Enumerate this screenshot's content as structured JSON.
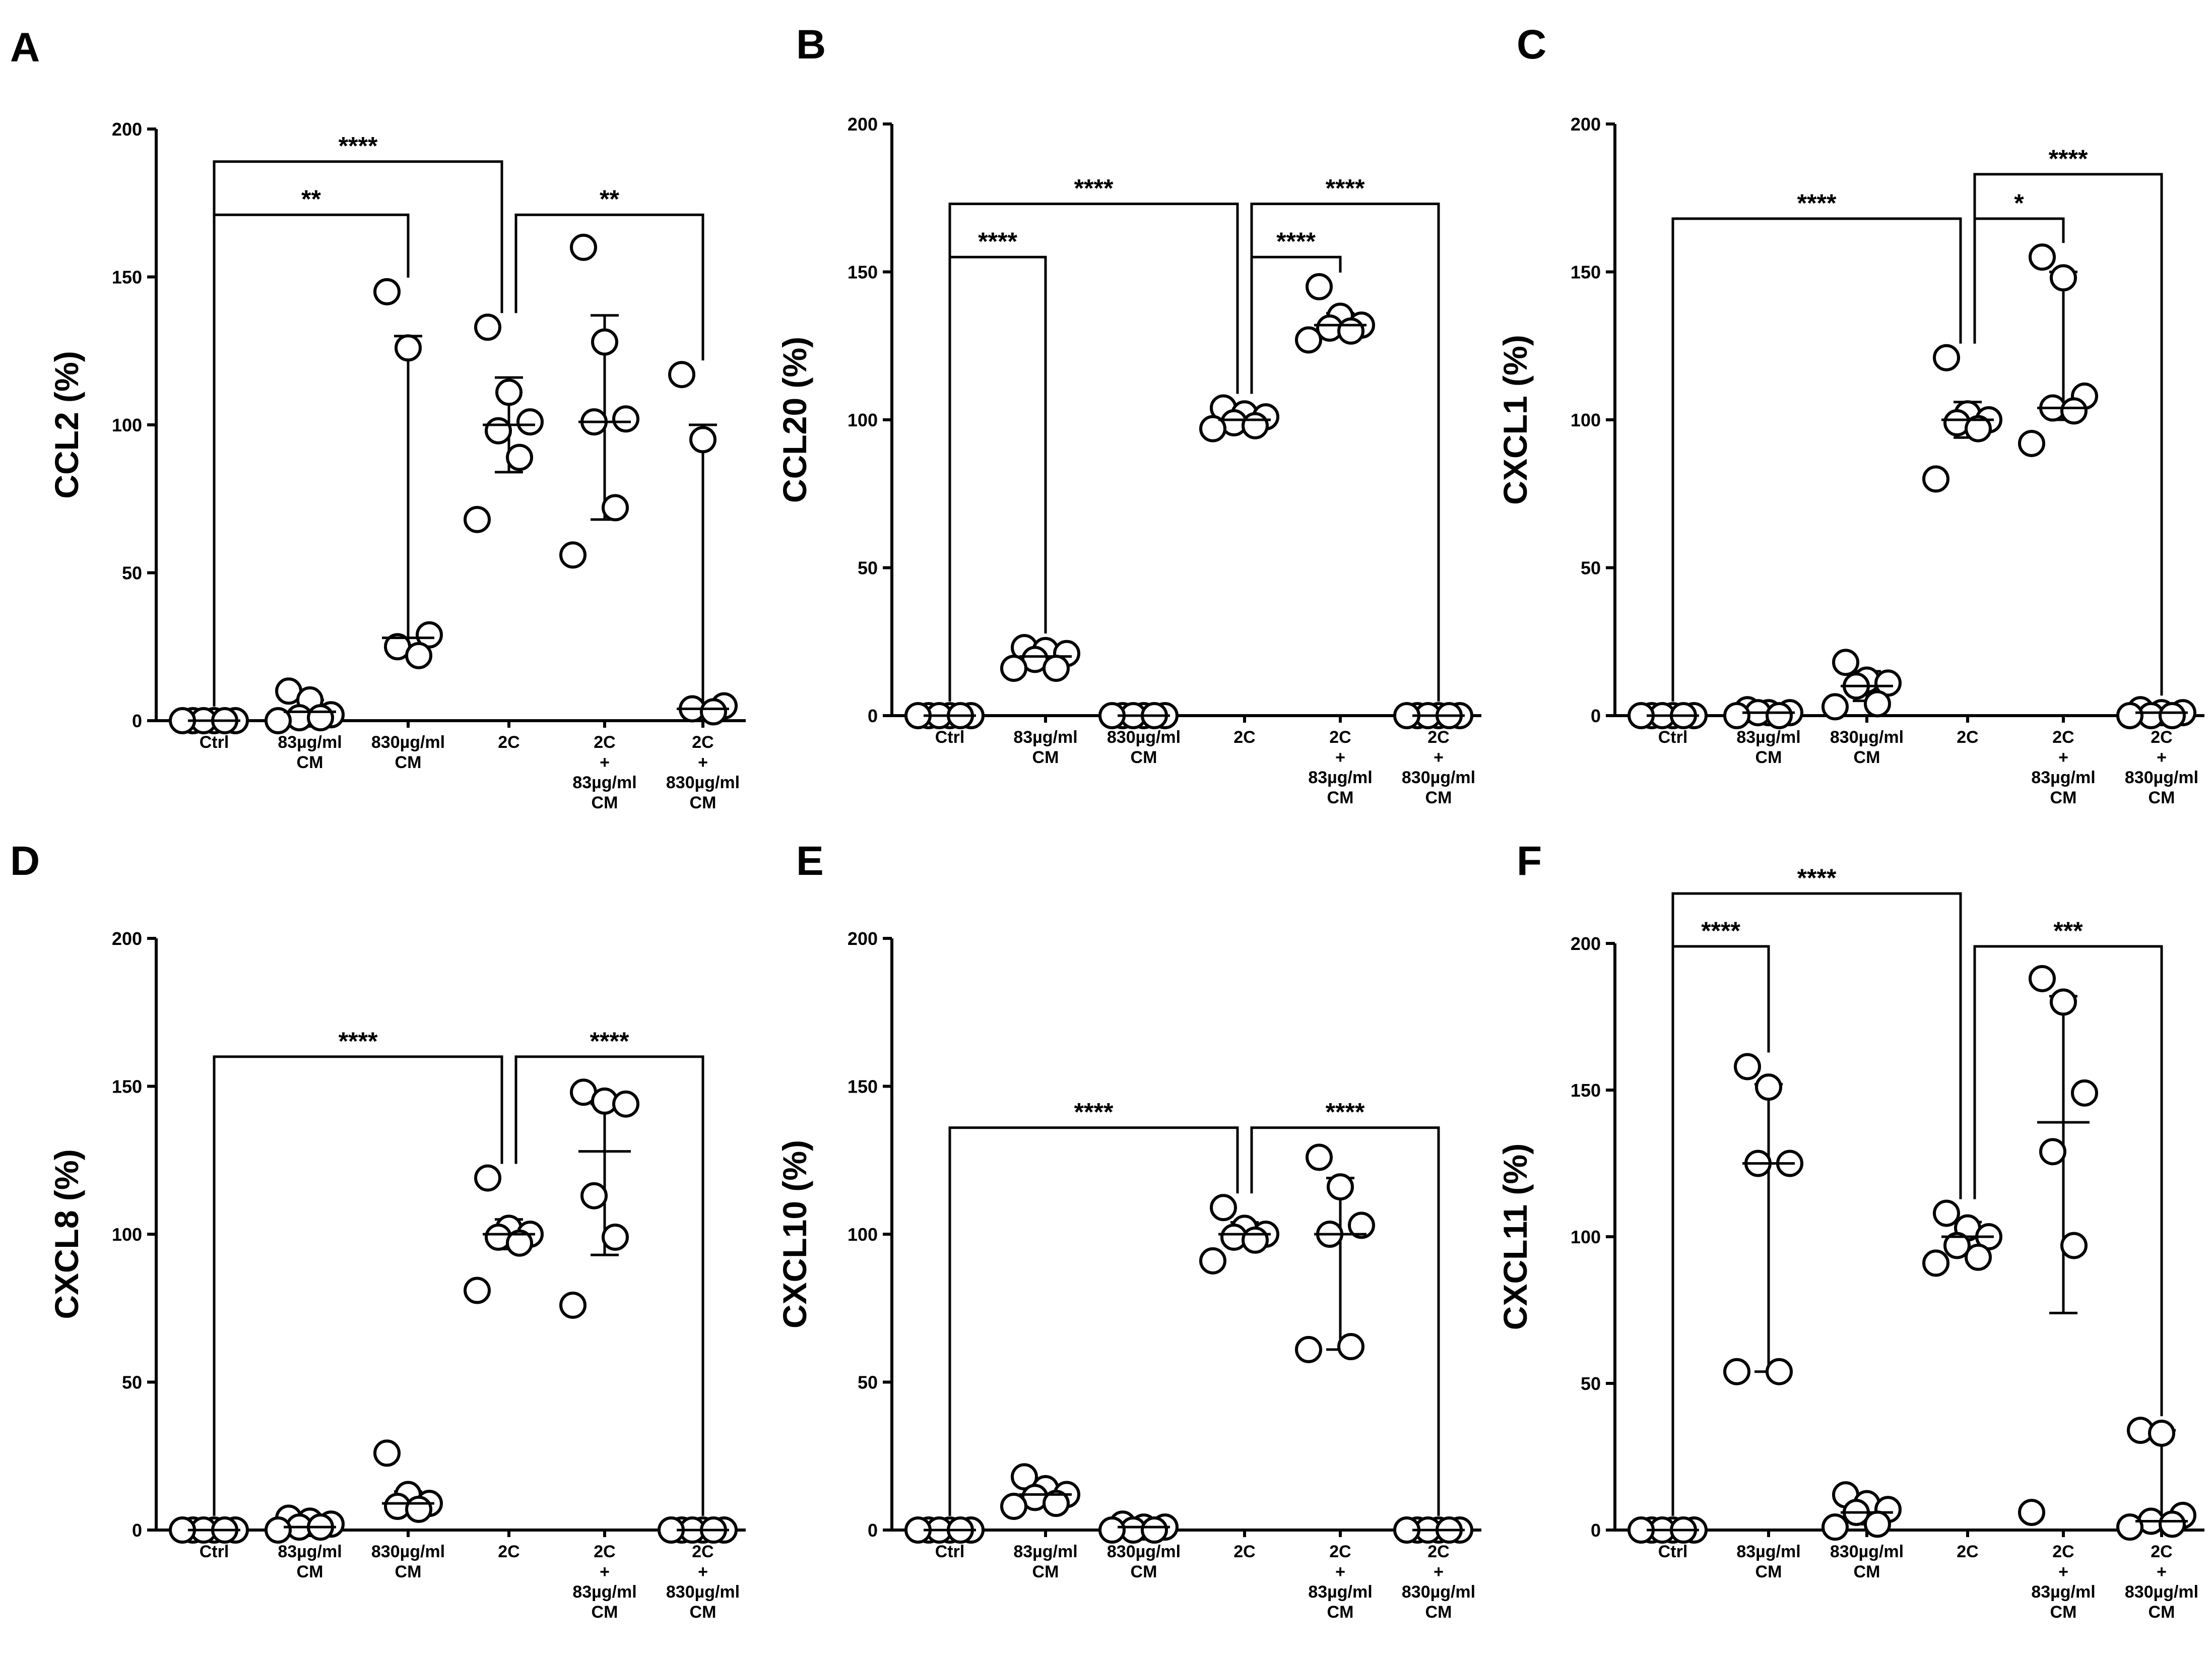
{
  "chart_data": [
    {
      "type": "scatter",
      "panel_letter": "A",
      "ylabel": "CCL2 (%)",
      "ylim": [
        0,
        200
      ],
      "yticks": [
        "0",
        "50",
        "100",
        "150",
        "200"
      ],
      "categories": [
        [
          "Ctrl"
        ],
        [
          "83µg/ml",
          "CM"
        ],
        [
          "830µg/ml",
          "CM"
        ],
        [
          "2C"
        ],
        [
          "2C",
          "+",
          "83µg/ml",
          "CM"
        ],
        [
          "2C",
          "+",
          "830µg/ml",
          "CM"
        ]
      ],
      "groups": [
        {
          "points": [
            0,
            0,
            0,
            0,
            0,
            0
          ],
          "mean": 0,
          "sd_low": 0,
          "sd_high": 0
        },
        {
          "points": [
            10,
            7,
            2,
            1,
            1,
            0
          ],
          "mean": 3,
          "sd_low": 0,
          "sd_high": 7
        },
        {
          "points": [
            145,
            126,
            29,
            25,
            22
          ],
          "mean": 28,
          "sd_low": 22,
          "sd_high": 130
        },
        {
          "points": [
            133,
            111,
            101,
            98,
            89,
            68
          ],
          "mean": 100,
          "sd_low": 84,
          "sd_high": 116
        },
        {
          "points": [
            160,
            128,
            102,
            101,
            72,
            56
          ],
          "mean": 101,
          "sd_low": 68,
          "sd_high": 137
        },
        {
          "points": [
            117,
            95,
            5,
            4,
            3
          ],
          "mean": 4,
          "sd_low": 3,
          "sd_high": 100
        }
      ],
      "comparisons": [
        {
          "from": 0,
          "to": 3,
          "label": "****",
          "y": 189
        },
        {
          "from": 0,
          "to": 2,
          "label": "**",
          "y": 171
        },
        {
          "from": 3,
          "to": 5,
          "label": "**",
          "y": 171
        }
      ]
    },
    {
      "type": "scatter",
      "panel_letter": "B",
      "ylabel": "CCL20 (%)",
      "ylim": [
        0,
        200
      ],
      "yticks": [
        "0",
        "50",
        "100",
        "150",
        "200"
      ],
      "categories": [
        [
          "Ctrl"
        ],
        [
          "83µg/ml",
          "CM"
        ],
        [
          "830µg/ml",
          "CM"
        ],
        [
          "2C"
        ],
        [
          "2C",
          "+",
          "83µg/ml",
          "CM"
        ],
        [
          "2C",
          "+",
          "830µg/ml",
          "CM"
        ]
      ],
      "groups": [
        {
          "points": [
            0,
            0,
            0,
            0,
            0,
            0
          ],
          "mean": 0,
          "sd_low": 0,
          "sd_high": 0
        },
        {
          "points": [
            23,
            22,
            21,
            19,
            16,
            16
          ],
          "mean": 20,
          "sd_low": 18,
          "sd_high": 22
        },
        {
          "points": [
            0,
            0,
            0,
            0,
            0,
            0
          ],
          "mean": 0,
          "sd_low": 0,
          "sd_high": 0
        },
        {
          "points": [
            104,
            102,
            101,
            99,
            98,
            97
          ],
          "mean": 100,
          "sd_low": 98,
          "sd_high": 102
        },
        {
          "points": [
            145,
            135,
            132,
            131,
            130,
            127
          ],
          "mean": 132,
          "sd_low": 129,
          "sd_high": 136
        },
        {
          "points": [
            0,
            0,
            0,
            0,
            0,
            0
          ],
          "mean": 0,
          "sd_low": 0,
          "sd_high": 0
        }
      ],
      "comparisons": [
        {
          "from": 0,
          "to": 3,
          "label": "****",
          "y": 173
        },
        {
          "from": 3,
          "to": 5,
          "label": "****",
          "y": 173
        },
        {
          "from": 0,
          "to": 1,
          "label": "****",
          "y": 155
        },
        {
          "from": 3,
          "to": 4,
          "label": "****",
          "y": 155
        }
      ]
    },
    {
      "type": "scatter",
      "panel_letter": "C",
      "ylabel": "CXCL1 (%)",
      "ylim": [
        0,
        200
      ],
      "yticks": [
        "0",
        "50",
        "100",
        "150",
        "200"
      ],
      "categories": [
        [
          "Ctrl"
        ],
        [
          "83µg/ml",
          "CM"
        ],
        [
          "830µg/ml",
          "CM"
        ],
        [
          "2C"
        ],
        [
          "2C",
          "+",
          "83µg/ml",
          "CM"
        ],
        [
          "2C",
          "+",
          "830µg/ml",
          "CM"
        ]
      ],
      "groups": [
        {
          "points": [
            0,
            0,
            0,
            0,
            0,
            0
          ],
          "mean": 0,
          "sd_low": 0,
          "sd_high": 0
        },
        {
          "points": [
            2,
            1,
            1,
            1,
            0,
            0
          ],
          "mean": 1,
          "sd_low": 0,
          "sd_high": 2
        },
        {
          "points": [
            18,
            12,
            11,
            10,
            4,
            3
          ],
          "mean": 10,
          "sd_low": 5,
          "sd_high": 15
        },
        {
          "points": [
            121,
            102,
            100,
            99,
            97,
            80
          ],
          "mean": 100,
          "sd_low": 94,
          "sd_high": 106
        },
        {
          "points": [
            155,
            148,
            108,
            104,
            103,
            92
          ],
          "mean": 104,
          "sd_low": 100,
          "sd_high": 150
        },
        {
          "points": [
            2,
            1,
            1,
            0,
            0,
            0
          ],
          "mean": 1,
          "sd_low": 0,
          "sd_high": 2
        }
      ],
      "comparisons": [
        {
          "from": 3,
          "to": 5,
          "label": "****",
          "y": 183
        },
        {
          "from": 0,
          "to": 3,
          "label": "****",
          "y": 168
        },
        {
          "from": 3,
          "to": 4,
          "label": "*",
          "y": 168
        }
      ]
    },
    {
      "type": "scatter",
      "panel_letter": "D",
      "ylabel": "CXCL8 (%)",
      "ylim": [
        0,
        200
      ],
      "yticks": [
        "0",
        "50",
        "100",
        "150",
        "200"
      ],
      "categories": [
        [
          "Ctrl"
        ],
        [
          "83µg/ml",
          "CM"
        ],
        [
          "830µg/ml",
          "CM"
        ],
        [
          "2C"
        ],
        [
          "2C",
          "+",
          "83µg/ml",
          "CM"
        ],
        [
          "2C",
          "+",
          "830µg/ml",
          "CM"
        ]
      ],
      "groups": [
        {
          "points": [
            0,
            0,
            0,
            0,
            0,
            0
          ],
          "mean": 0,
          "sd_low": 0,
          "sd_high": 0
        },
        {
          "points": [
            4,
            3,
            2,
            1,
            1,
            0
          ],
          "mean": 1,
          "sd_low": 0,
          "sd_high": 3
        },
        {
          "points": [
            26,
            12,
            9,
            8,
            7
          ],
          "mean": 9,
          "sd_low": 6,
          "sd_high": 13
        },
        {
          "points": [
            119,
            102,
            100,
            99,
            97,
            81
          ],
          "mean": 100,
          "sd_low": 95,
          "sd_high": 105
        },
        {
          "points": [
            148,
            145,
            144,
            113,
            99,
            76
          ],
          "mean": 128,
          "sd_low": 93,
          "sd_high": 144
        },
        {
          "points": [
            0,
            0,
            0,
            0,
            0,
            0
          ],
          "mean": 0,
          "sd_low": 0,
          "sd_high": 0
        }
      ],
      "comparisons": [
        {
          "from": 0,
          "to": 3,
          "label": "****",
          "y": 160
        },
        {
          "from": 3,
          "to": 5,
          "label": "****",
          "y": 160
        }
      ]
    },
    {
      "type": "scatter",
      "panel_letter": "E",
      "ylabel": "CXCL10 (%)",
      "ylim": [
        0,
        200
      ],
      "yticks": [
        "0",
        "50",
        "100",
        "150",
        "200"
      ],
      "categories": [
        [
          "Ctrl"
        ],
        [
          "83µg/ml",
          "CM"
        ],
        [
          "830µg/ml",
          "CM"
        ],
        [
          "2C"
        ],
        [
          "2C",
          "+",
          "83µg/ml",
          "CM"
        ],
        [
          "2C",
          "+",
          "830µg/ml",
          "CM"
        ]
      ],
      "groups": [
        {
          "points": [
            0,
            0,
            0,
            0,
            0,
            0
          ],
          "mean": 0,
          "sd_low": 0,
          "sd_high": 0
        },
        {
          "points": [
            18,
            14,
            12,
            11,
            9,
            8
          ],
          "mean": 12,
          "sd_low": 9,
          "sd_high": 15
        },
        {
          "points": [
            2,
            1,
            1,
            0,
            0,
            0
          ],
          "mean": 1,
          "sd_low": 0,
          "sd_high": 2
        },
        {
          "points": [
            109,
            102,
            100,
            99,
            98,
            91
          ],
          "mean": 100,
          "sd_low": 96,
          "sd_high": 104
        },
        {
          "points": [
            126,
            116,
            103,
            100,
            62,
            61
          ],
          "mean": 100,
          "sd_low": 61,
          "sd_high": 119
        },
        {
          "points": [
            0,
            0,
            0,
            0,
            0,
            0
          ],
          "mean": 0,
          "sd_low": 0,
          "sd_high": 0
        }
      ],
      "comparisons": [
        {
          "from": 0,
          "to": 3,
          "label": "****",
          "y": 136
        },
        {
          "from": 3,
          "to": 5,
          "label": "****",
          "y": 136
        }
      ]
    },
    {
      "type": "scatter",
      "panel_letter": "F",
      "ylabel": "CXCL11 (%)",
      "ylim": [
        0,
        200
      ],
      "yticks": [
        "0",
        "50",
        "100",
        "150",
        "200"
      ],
      "categories": [
        [
          "Ctrl"
        ],
        [
          "83µg/ml",
          "CM"
        ],
        [
          "830µg/ml",
          "CM"
        ],
        [
          "2C"
        ],
        [
          "2C",
          "+",
          "83µg/ml",
          "CM"
        ],
        [
          "2C",
          "+",
          "830µg/ml",
          "CM"
        ]
      ],
      "groups": [
        {
          "points": [
            0,
            0,
            0,
            0,
            0,
            0
          ],
          "mean": 0,
          "sd_low": 0,
          "sd_high": 0
        },
        {
          "points": [
            158,
            151,
            125,
            125,
            54,
            54
          ],
          "mean": 125,
          "sd_low": 54,
          "sd_high": 152
        },
        {
          "points": [
            12,
            9,
            7,
            6,
            2,
            1
          ],
          "mean": 6,
          "sd_low": 2,
          "sd_high": 10
        },
        {
          "points": [
            108,
            103,
            100,
            97,
            93,
            91
          ],
          "mean": 100,
          "sd_low": 95,
          "sd_high": 105
        },
        {
          "points": [
            188,
            180,
            149,
            129,
            97,
            6
          ],
          "mean": 139,
          "sd_low": 74,
          "sd_high": 182
        },
        {
          "points": [
            34,
            33,
            5,
            3,
            2,
            1
          ],
          "mean": 3,
          "sd_low": 1,
          "sd_high": 34
        }
      ],
      "comparisons": [
        {
          "from": 0,
          "to": 3,
          "label": "****",
          "y": 217
        },
        {
          "from": 0,
          "to": 1,
          "label": "****",
          "y": 199
        },
        {
          "from": 3,
          "to": 5,
          "label": "***",
          "y": 199
        }
      ]
    }
  ]
}
